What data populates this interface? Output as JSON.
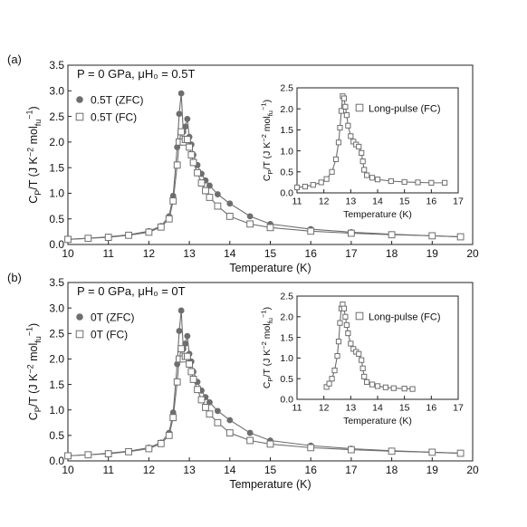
{
  "chart_data": [
    {
      "panel_label": "(a)",
      "type": "scatter",
      "annotation": "P = 0 GPa, μH₀ = 0.5T",
      "xlabel": "Temperature (K)",
      "ylabel": "C_P/T (J K⁻² mol_fu⁻¹)",
      "xlim": [
        10,
        20
      ],
      "ylim": [
        0,
        3.5
      ],
      "xticks": [
        10,
        11,
        12,
        13,
        14,
        15,
        16,
        17,
        18,
        19,
        20
      ],
      "yticks": [
        0.0,
        0.5,
        1.0,
        1.5,
        2.0,
        2.5,
        3.0,
        3.5
      ],
      "series": [
        {
          "name": "0.5T (ZFC)",
          "marker": "filled-circle",
          "color": "#6e6e6e",
          "x": [
            10.0,
            10.5,
            11.0,
            11.5,
            12.0,
            12.3,
            12.5,
            12.6,
            12.7,
            12.75,
            12.8,
            12.85,
            12.9,
            12.95,
            13.0,
            13.05,
            13.1,
            13.2,
            13.3,
            13.4,
            13.5,
            13.7,
            14.0,
            14.5,
            15.0,
            16.0,
            17.0,
            18.0,
            19.0,
            19.7
          ],
          "y": [
            0.1,
            0.12,
            0.15,
            0.19,
            0.26,
            0.36,
            0.55,
            0.95,
            1.9,
            2.55,
            2.95,
            2.2,
            2.3,
            2.45,
            2.1,
            1.95,
            1.75,
            1.55,
            1.38,
            1.25,
            1.15,
            0.98,
            0.8,
            0.55,
            0.4,
            0.3,
            0.24,
            0.2,
            0.17,
            0.15
          ]
        },
        {
          "name": "0.5T (FC)",
          "marker": "open-square",
          "color": "#6e6e6e",
          "x": [
            10.0,
            10.5,
            11.0,
            11.5,
            12.0,
            12.3,
            12.5,
            12.6,
            12.7,
            12.75,
            12.8,
            12.85,
            12.9,
            12.95,
            13.0,
            13.05,
            13.1,
            13.2,
            13.3,
            13.4,
            13.5,
            13.7,
            14.0,
            14.5,
            15.0,
            16.0,
            17.0,
            18.0,
            19.0,
            19.7
          ],
          "y": [
            0.1,
            0.12,
            0.14,
            0.18,
            0.24,
            0.34,
            0.5,
            0.85,
            1.55,
            2.0,
            2.2,
            2.0,
            2.05,
            2.05,
            1.9,
            1.75,
            1.6,
            1.4,
            1.2,
            1.05,
            0.92,
            0.75,
            0.55,
            0.4,
            0.33,
            0.26,
            0.22,
            0.19,
            0.17,
            0.15
          ]
        }
      ],
      "inset": {
        "type": "scatter",
        "xlabel": "Temperature (K)",
        "ylabel": "C_P/T (J K⁻² mol_fu⁻¹)",
        "xlim": [
          11,
          17
        ],
        "ylim": [
          0,
          2.5
        ],
        "xticks": [
          11,
          12,
          13,
          14,
          15,
          16,
          17
        ],
        "yticks": [
          0.0,
          0.5,
          1.0,
          1.5,
          2.0,
          2.5
        ],
        "series": [
          {
            "name": "Long-pulse (FC)",
            "marker": "open-square",
            "color": "#6e6e6e",
            "x": [
              11.0,
              11.3,
              11.6,
              11.9,
              12.1,
              12.3,
              12.45,
              12.55,
              12.6,
              12.65,
              12.7,
              12.75,
              12.8,
              12.85,
              12.9,
              13.0,
              13.1,
              13.2,
              13.3,
              13.4,
              13.45,
              13.5,
              13.6,
              13.8,
              14.0,
              14.5,
              15.0,
              15.5,
              16.0,
              16.5
            ],
            "y": [
              0.13,
              0.15,
              0.19,
              0.25,
              0.33,
              0.5,
              0.8,
              1.2,
              1.55,
              1.95,
              2.3,
              2.25,
              2.05,
              1.85,
              1.6,
              1.35,
              1.22,
              1.15,
              1.1,
              0.95,
              0.75,
              0.55,
              0.42,
              0.36,
              0.32,
              0.28,
              0.26,
              0.25,
              0.24,
              0.24
            ]
          }
        ]
      }
    },
    {
      "panel_label": "(b)",
      "type": "scatter",
      "annotation": "P = 0 GPa, μH₀ = 0T",
      "xlabel": "Temperature (K)",
      "ylabel": "C_P/T (J K⁻² mol_fu⁻¹)",
      "xlim": [
        10,
        20
      ],
      "ylim": [
        0,
        3.5
      ],
      "xticks": [
        10,
        11,
        12,
        13,
        14,
        15,
        16,
        17,
        18,
        19,
        20
      ],
      "yticks": [
        0.0,
        0.5,
        1.0,
        1.5,
        2.0,
        2.5,
        3.0,
        3.5
      ],
      "series": [
        {
          "name": "0T (ZFC)",
          "marker": "filled-circle",
          "color": "#6e6e6e",
          "x": [
            10.0,
            10.5,
            11.0,
            11.5,
            12.0,
            12.3,
            12.5,
            12.6,
            12.7,
            12.75,
            12.8,
            12.85,
            12.9,
            12.95,
            13.0,
            13.05,
            13.1,
            13.2,
            13.3,
            13.4,
            13.5,
            13.7,
            14.0,
            14.5,
            15.0,
            16.0,
            17.0,
            18.0,
            19.0,
            19.7
          ],
          "y": [
            0.1,
            0.12,
            0.15,
            0.19,
            0.26,
            0.36,
            0.55,
            0.95,
            1.9,
            2.55,
            2.95,
            2.2,
            2.3,
            2.45,
            2.1,
            1.95,
            1.75,
            1.55,
            1.38,
            1.25,
            1.15,
            0.98,
            0.8,
            0.55,
            0.4,
            0.3,
            0.24,
            0.2,
            0.17,
            0.15
          ]
        },
        {
          "name": "0T (FC)",
          "marker": "open-square",
          "color": "#6e6e6e",
          "x": [
            10.0,
            10.5,
            11.0,
            11.5,
            12.0,
            12.3,
            12.5,
            12.6,
            12.7,
            12.75,
            12.8,
            12.85,
            12.9,
            12.95,
            13.0,
            13.05,
            13.1,
            13.2,
            13.3,
            13.4,
            13.5,
            13.7,
            14.0,
            14.5,
            15.0,
            16.0,
            17.0,
            18.0,
            19.0,
            19.7
          ],
          "y": [
            0.1,
            0.12,
            0.14,
            0.18,
            0.24,
            0.34,
            0.5,
            0.85,
            1.55,
            2.0,
            2.2,
            2.0,
            2.05,
            2.05,
            1.9,
            1.75,
            1.6,
            1.4,
            1.2,
            1.05,
            0.92,
            0.75,
            0.55,
            0.4,
            0.33,
            0.26,
            0.22,
            0.19,
            0.17,
            0.15
          ]
        }
      ],
      "inset": {
        "type": "scatter",
        "xlabel": "Temperature (K)",
        "ylabel": "C_P/T (J K⁻² mol_fu⁻¹)",
        "xlim": [
          11,
          17
        ],
        "ylim": [
          0,
          2.5
        ],
        "xticks": [
          11,
          12,
          13,
          14,
          15,
          16,
          17
        ],
        "yticks": [
          0.0,
          0.5,
          1.0,
          1.5,
          2.0,
          2.5
        ],
        "series": [
          {
            "name": "Long-pulse (FC)",
            "marker": "open-square",
            "color": "#6e6e6e",
            "x": [
              12.1,
              12.2,
              12.3,
              12.4,
              12.5,
              12.55,
              12.6,
              12.65,
              12.7,
              12.75,
              12.8,
              12.85,
              12.9,
              13.0,
              13.1,
              13.2,
              13.3,
              13.4,
              13.45,
              13.5,
              13.6,
              13.8,
              14.0,
              14.3,
              14.6,
              15.0,
              15.3
            ],
            "y": [
              0.3,
              0.38,
              0.5,
              0.7,
              1.05,
              1.4,
              1.85,
              2.2,
              2.3,
              2.2,
              2.0,
              1.8,
              1.6,
              1.35,
              1.22,
              1.15,
              1.1,
              0.95,
              0.75,
              0.55,
              0.42,
              0.36,
              0.32,
              0.29,
              0.27,
              0.26,
              0.25
            ]
          }
        ]
      }
    }
  ]
}
